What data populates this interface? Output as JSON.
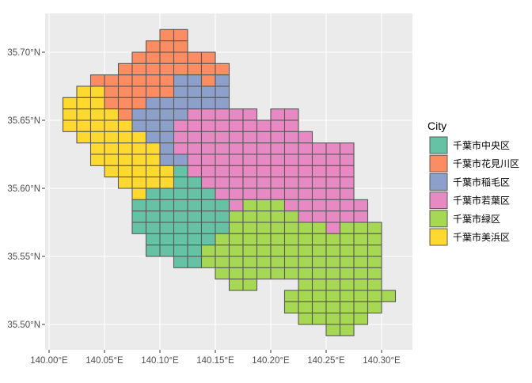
{
  "chart_data": {
    "type": "map",
    "grid_lines": true,
    "legend_placement": "right",
    "xlim": [
      139.995,
      140.325
    ],
    "ylim": [
      35.4625,
      35.73
    ],
    "x_ticks": [
      {
        "value": 140.0,
        "label": "140.00°E"
      },
      {
        "value": 140.05,
        "label": "140.05°E"
      },
      {
        "value": 140.1,
        "label": "140.10°E"
      },
      {
        "value": 140.15,
        "label": "140.15°E"
      },
      {
        "value": 140.2,
        "label": "140.20°E"
      },
      {
        "value": 140.25,
        "label": "140.25°E"
      },
      {
        "value": 140.3,
        "label": "140.30°E"
      }
    ],
    "y_ticks": [
      {
        "value": 35.7,
        "label": "35.70°N"
      },
      {
        "value": 35.65,
        "label": "35.65°N"
      },
      {
        "value": 35.6,
        "label": "35.60°N"
      },
      {
        "value": 35.55,
        "label": "35.55°N"
      },
      {
        "value": 35.5,
        "label": "35.50°N"
      }
    ],
    "legend": {
      "title": "City",
      "entries": [
        {
          "code": "T",
          "label": "千葉市中央区",
          "color": "#66C2A5"
        },
        {
          "code": "O",
          "label": "千葉市花見川区",
          "color": "#FC8D62"
        },
        {
          "code": "B",
          "label": "千葉市稲毛区",
          "color": "#8DA0CB"
        },
        {
          "code": "P",
          "label": "千葉市若葉区",
          "color": "#E78AC3"
        },
        {
          "code": "G",
          "label": "千葉市緑区",
          "color": "#A6D854"
        },
        {
          "code": "Y",
          "label": "千葉市美浜区",
          "color": "#FFD92F"
        }
      ]
    },
    "mesh": {
      "west_lon": 140.0125,
      "north_lat": 35.716667,
      "cell_lon": 0.0125,
      "cell_lat": 0.008333,
      "rows": [
        ".......OO...............",
        "......OOO...............",
        ".....OOOOOO.............",
        "....OOOOOOOO............",
        "..OOOOOOBBOB............",
        ".YYOOOOOBBBB............",
        "YYYOOOBBBBBB............",
        "YYYYOBBBBPPPPP.PP.......",
        "YYYYYBBBPPPPPPPPP.......",
        ".YYYYYBBPPPPPPPPPP......",
        "..YYYYYBPPPPPPPPPPPPP...",
        "..YYYYYBBPPPPPPPPPPPP...",
        "...YYYYYTPPPPPPPPPPPP...",
        "....YYYYTTPPPPPPPPPPP...",
        ".....YTTTTTPPPPPPPPPP...",
        ".....TTTTTTTPGGGPPPPPP..",
        ".....TTTTTTTGGGGGPPPPP..",
        ".....TTTTTTTGGGGGGGPGGG.",
        "......TTTTTGGGGGGGGGGGG.",
        "......TTTTGGGGGGGGGGGGG.",
        "........TTGGGGGGGGGGGGG.",
        "...........GGGGGGGGGGGG.",
        "............GG...GGGGGG.",
        "................GGGGGGGG",
        "................GGGGGGG.",
        ".................GGGGG..",
        "...................GG..."
      ]
    }
  }
}
